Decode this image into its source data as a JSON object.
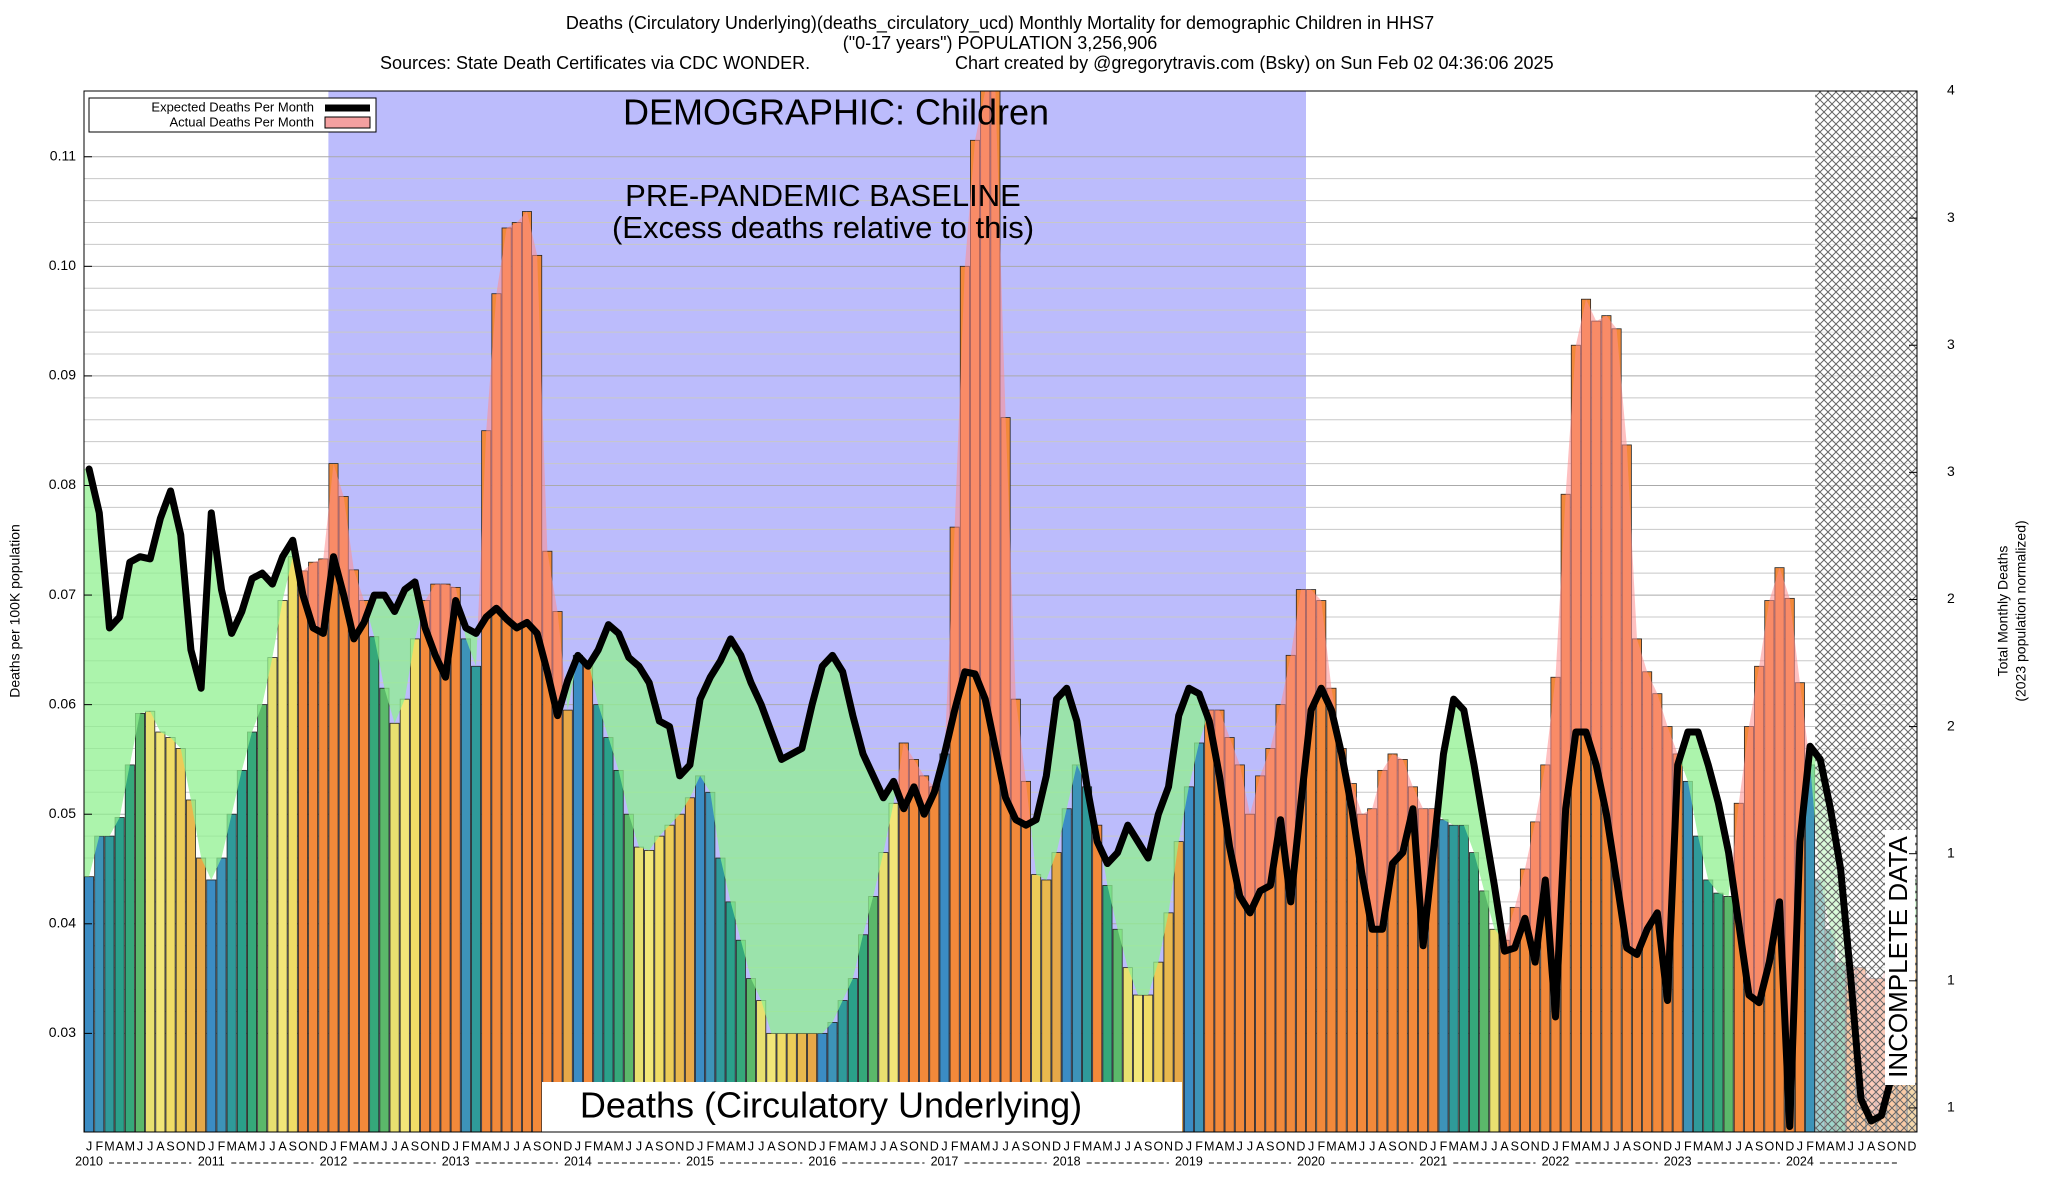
{
  "chart_data": {
    "type": "bar",
    "title": [
      "Deaths (Circulatory Underlying)(deaths_circulatory_ucd) Monthly Mortality for demographic Children in HHS7",
      "(\"0-17 years\") POPULATION 3,256,906"
    ],
    "sources": "Sources: State Death Certificates via CDC WONDER.",
    "credit": "Chart created by @gregorytravis.com (Bsky) on Sun Feb 02 04:36:06 2025",
    "annotations": {
      "demographic": "DEMOGRAPHIC: Children",
      "baseline": "PRE-PANDEMIC BASELINE",
      "baseline_note": "(Excess deaths relative to this)",
      "metric": "Deaths (Circulatory Underlying)",
      "incomplete": "INCOMPLETE DATA"
    },
    "ylabel": "Deaths per 100K population",
    "y2label": [
      "Total Monthly Deaths",
      "(2023 population normalized)"
    ],
    "years": [
      2010,
      2011,
      2012,
      2013,
      2014,
      2015,
      2016,
      2017,
      2018,
      2019,
      2020,
      2021,
      2022,
      2023,
      2024
    ],
    "months": [
      "J",
      "F",
      "M",
      "A",
      "M",
      "J",
      "J",
      "A",
      "S",
      "O",
      "N",
      "D"
    ],
    "series": [
      {
        "name": "Expected Deaths Per Month",
        "type": "line",
        "color": "#000000",
        "values": [
          0.0815,
          0.0775,
          0.067,
          0.068,
          0.073,
          0.0735,
          0.0733,
          0.077,
          0.0795,
          0.0755,
          0.065,
          0.0615,
          0.0775,
          0.0705,
          0.0665,
          0.0685,
          0.0715,
          0.072,
          0.071,
          0.0735,
          0.075,
          0.07,
          0.067,
          0.0665,
          0.0735,
          0.07,
          0.066,
          0.0675,
          0.07,
          0.07,
          0.0685,
          0.0705,
          0.0712,
          0.067,
          0.0645,
          0.0625,
          0.0695,
          0.067,
          0.0665,
          0.068,
          0.0688,
          0.0678,
          0.067,
          0.0675,
          0.0665,
          0.063,
          0.059,
          0.0622,
          0.0645,
          0.0635,
          0.065,
          0.0673,
          0.0665,
          0.0643,
          0.0635,
          0.062,
          0.0585,
          0.058,
          0.0535,
          0.0545,
          0.0605,
          0.0625,
          0.064,
          0.066,
          0.0645,
          0.062,
          0.06,
          0.0575,
          0.055,
          0.0555,
          0.056,
          0.06,
          0.0635,
          0.0645,
          0.063,
          0.059,
          0.0555,
          0.0535,
          0.0515,
          0.053,
          0.0505,
          0.0525,
          0.05,
          0.052,
          0.0555,
          0.0595,
          0.063,
          0.0628,
          0.0605,
          0.056,
          0.0515,
          0.0495,
          0.049,
          0.0495,
          0.0535,
          0.0605,
          0.0615,
          0.0585,
          0.0525,
          0.0475,
          0.0455,
          0.0465,
          0.049,
          0.0475,
          0.046,
          0.05,
          0.0525,
          0.059,
          0.0615,
          0.061,
          0.0585,
          0.0535,
          0.047,
          0.0425,
          0.041,
          0.043,
          0.0435,
          0.0495,
          0.042,
          0.051,
          0.0595,
          0.0615,
          0.0595,
          0.0555,
          0.0505,
          0.0445,
          0.0395,
          0.0395,
          0.0455,
          0.0465,
          0.0505,
          0.038,
          0.0465,
          0.0555,
          0.0605,
          0.0595,
          0.0545,
          0.049,
          0.0435,
          0.0375,
          0.0378,
          0.0405,
          0.0365,
          0.044,
          0.0315,
          0.0505,
          0.0575,
          0.0575,
          0.0545,
          0.05,
          0.044,
          0.0378,
          0.0372,
          0.0395,
          0.041,
          0.033,
          0.0545,
          0.0575,
          0.0575,
          0.0545,
          0.051,
          0.0465,
          0.04,
          0.0335,
          0.0328,
          0.0365,
          0.042,
          0.0215,
          0.0475,
          0.0562,
          0.055,
          0.0505,
          0.045,
          0.035,
          0.024,
          0.022,
          0.0225,
          0.026,
          0.035,
          0.044
        ]
      },
      {
        "name": "Actual Deaths Per Month",
        "type": "bar",
        "color": "#f4a0a0",
        "values": [
          0.0443,
          0.048,
          0.048,
          0.0497,
          0.0545,
          0.0592,
          0.0594,
          0.0575,
          0.057,
          0.056,
          0.0513,
          0.046,
          0.044,
          0.046,
          0.05,
          0.054,
          0.0575,
          0.06,
          0.0643,
          0.0695,
          0.0735,
          0.0722,
          0.073,
          0.0733,
          0.082,
          0.079,
          0.0723,
          0.0695,
          0.0662,
          0.0615,
          0.0583,
          0.0605,
          0.066,
          0.0695,
          0.071,
          0.071,
          0.0707,
          0.066,
          0.0635,
          0.085,
          0.0975,
          0.1035,
          0.104,
          0.105,
          0.101,
          0.074,
          0.0685,
          0.0595,
          0.0645,
          0.064,
          0.06,
          0.057,
          0.054,
          0.05,
          0.047,
          0.0467,
          0.048,
          0.049,
          0.05,
          0.0515,
          0.0535,
          0.052,
          0.046,
          0.042,
          0.0385,
          0.035,
          0.033,
          0.03,
          0.03,
          0.03,
          0.03,
          0.03,
          0.03,
          0.031,
          0.033,
          0.035,
          0.039,
          0.0425,
          0.0465,
          0.051,
          0.0565,
          0.055,
          0.0535,
          0.0525,
          0.0555,
          0.0762,
          0.1,
          0.1115,
          0.116,
          0.116,
          0.0862,
          0.0605,
          0.053,
          0.0445,
          0.044,
          0.0465,
          0.0505,
          0.0545,
          0.0525,
          0.049,
          0.0435,
          0.0395,
          0.036,
          0.0335,
          0.0335,
          0.0365,
          0.041,
          0.0475,
          0.0525,
          0.0565,
          0.0595,
          0.0595,
          0.057,
          0.0545,
          0.05,
          0.0535,
          0.056,
          0.06,
          0.0645,
          0.0705,
          0.0705,
          0.0695,
          0.0615,
          0.056,
          0.0528,
          0.05,
          0.0505,
          0.054,
          0.0555,
          0.055,
          0.0525,
          0.0505,
          0.0505,
          0.0495,
          0.049,
          0.049,
          0.0465,
          0.043,
          0.0395,
          0.0385,
          0.0415,
          0.045,
          0.0493,
          0.0545,
          0.0625,
          0.0792,
          0.0928,
          0.097,
          0.095,
          0.0955,
          0.0943,
          0.0837,
          0.066,
          0.063,
          0.061,
          0.058,
          0.0555,
          0.053,
          0.048,
          0.044,
          0.0428,
          0.0425,
          0.051,
          0.058,
          0.0635,
          0.0695,
          0.0725,
          0.0697,
          0.062,
          0.0545,
          0.044,
          0.0395,
          0.0365,
          0.036,
          0.036,
          0.035,
          0.035,
          0.037,
          0.04,
          0.04
        ]
      }
    ],
    "month_colors": [
      "#3b8cc4",
      "#3d93b8",
      "#2f9a9a",
      "#2aa08a",
      "#35a87a",
      "#5bb86a",
      "#e8e070",
      "#f2e678",
      "#f0dc66",
      "#eccc58",
      "#e8b84e",
      "#e6a848"
    ],
    "excess_color": "#f2893a",
    "shortfall_fill": "#90f090",
    "excess_fill": "#ff8c8c",
    "baseline_color": "#bcbcfc",
    "baseline_years": [
      2012,
      2019
    ],
    "incomplete_from": [
      2024,
      3
    ],
    "ylim": [
      0.021,
      0.116
    ],
    "yticks": [
      0.03,
      0.04,
      0.05,
      0.06,
      0.07,
      0.08,
      0.09,
      {
        "value": 0.1,
        "label": "0.10"
      },
      0.11
    ],
    "y2lim": [
      0.679,
      3.75
    ],
    "y2ticks": [
      {
        "value": 0.75,
        "label": "1"
      },
      {
        "value": 1.125,
        "label": "1"
      },
      {
        "value": 1.5,
        "label": "1"
      },
      {
        "value": 1.875,
        "label": "2"
      },
      {
        "value": 2.25,
        "label": "2"
      },
      {
        "value": 2.625,
        "label": "3"
      },
      3,
      {
        "value": 3.375,
        "label": "3"
      },
      {
        "value": 3.75,
        "label": "4"
      }
    ],
    "grid": true,
    "legend": "upper left"
  }
}
